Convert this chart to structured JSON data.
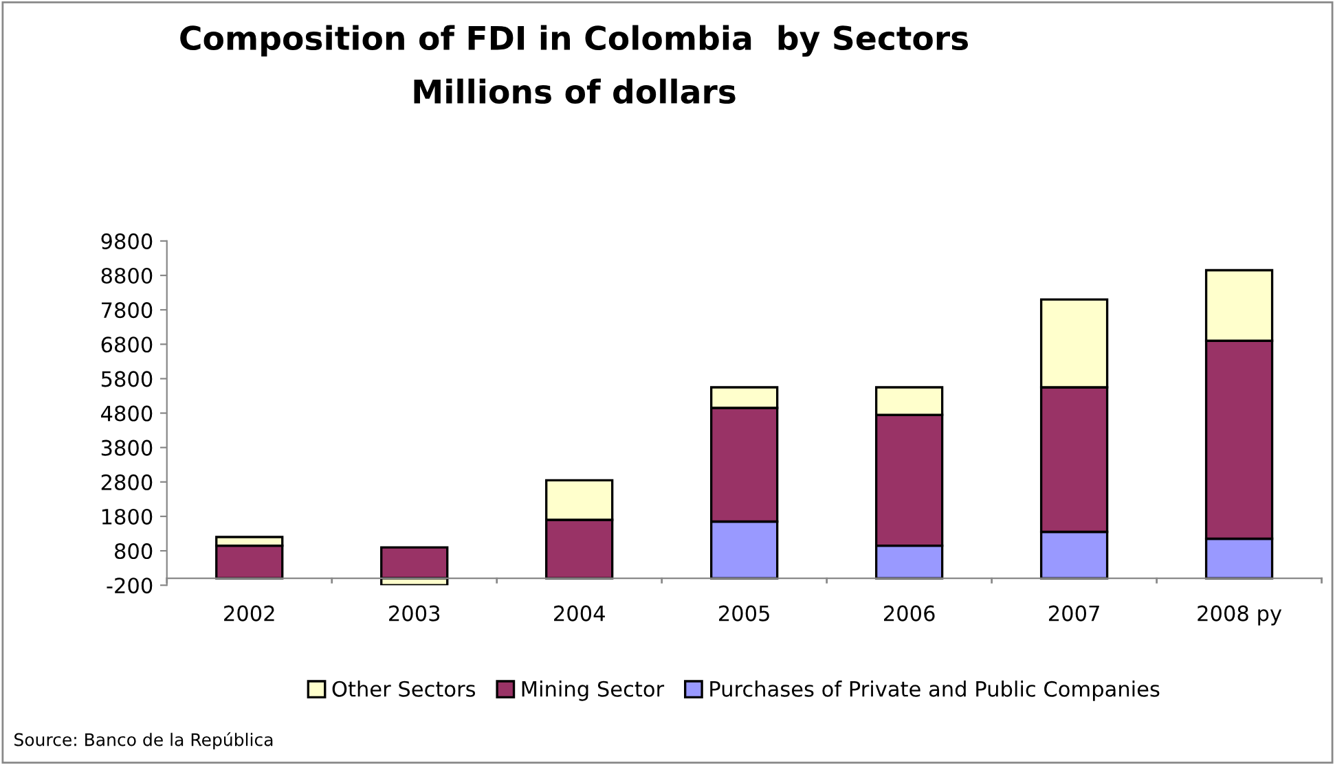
{
  "chart_data": {
    "type": "bar",
    "title": "Composition of FDI in Colombia  by Sectors",
    "subtitle": "Millions of dollars",
    "stacked": true,
    "categories": [
      "2002",
      "2003",
      "2004",
      "2005",
      "2006",
      "2007",
      "2008 py"
    ],
    "series": [
      {
        "name": "Purchases of Private and Public Companies",
        "color": "#9999ff",
        "values": [
          null,
          null,
          null,
          1650,
          950,
          1350,
          1150
        ]
      },
      {
        "name": "Mining Sector",
        "color": "#993366",
        "values": [
          950,
          900,
          1700,
          3300,
          3800,
          4200,
          5750
        ]
      },
      {
        "name": "Other Sectors",
        "color": "#ffffcc",
        "values": [
          250,
          -200,
          1150,
          600,
          800,
          2550,
          2050
        ]
      }
    ],
    "ylim": [
      -200,
      9800
    ],
    "yticks": [
      -200,
      800,
      1800,
      2800,
      3800,
      4800,
      5800,
      6800,
      7800,
      8800,
      9800
    ],
    "grid": false,
    "legend": "bottom",
    "annotations": [
      "Source: Banco de la República"
    ]
  }
}
